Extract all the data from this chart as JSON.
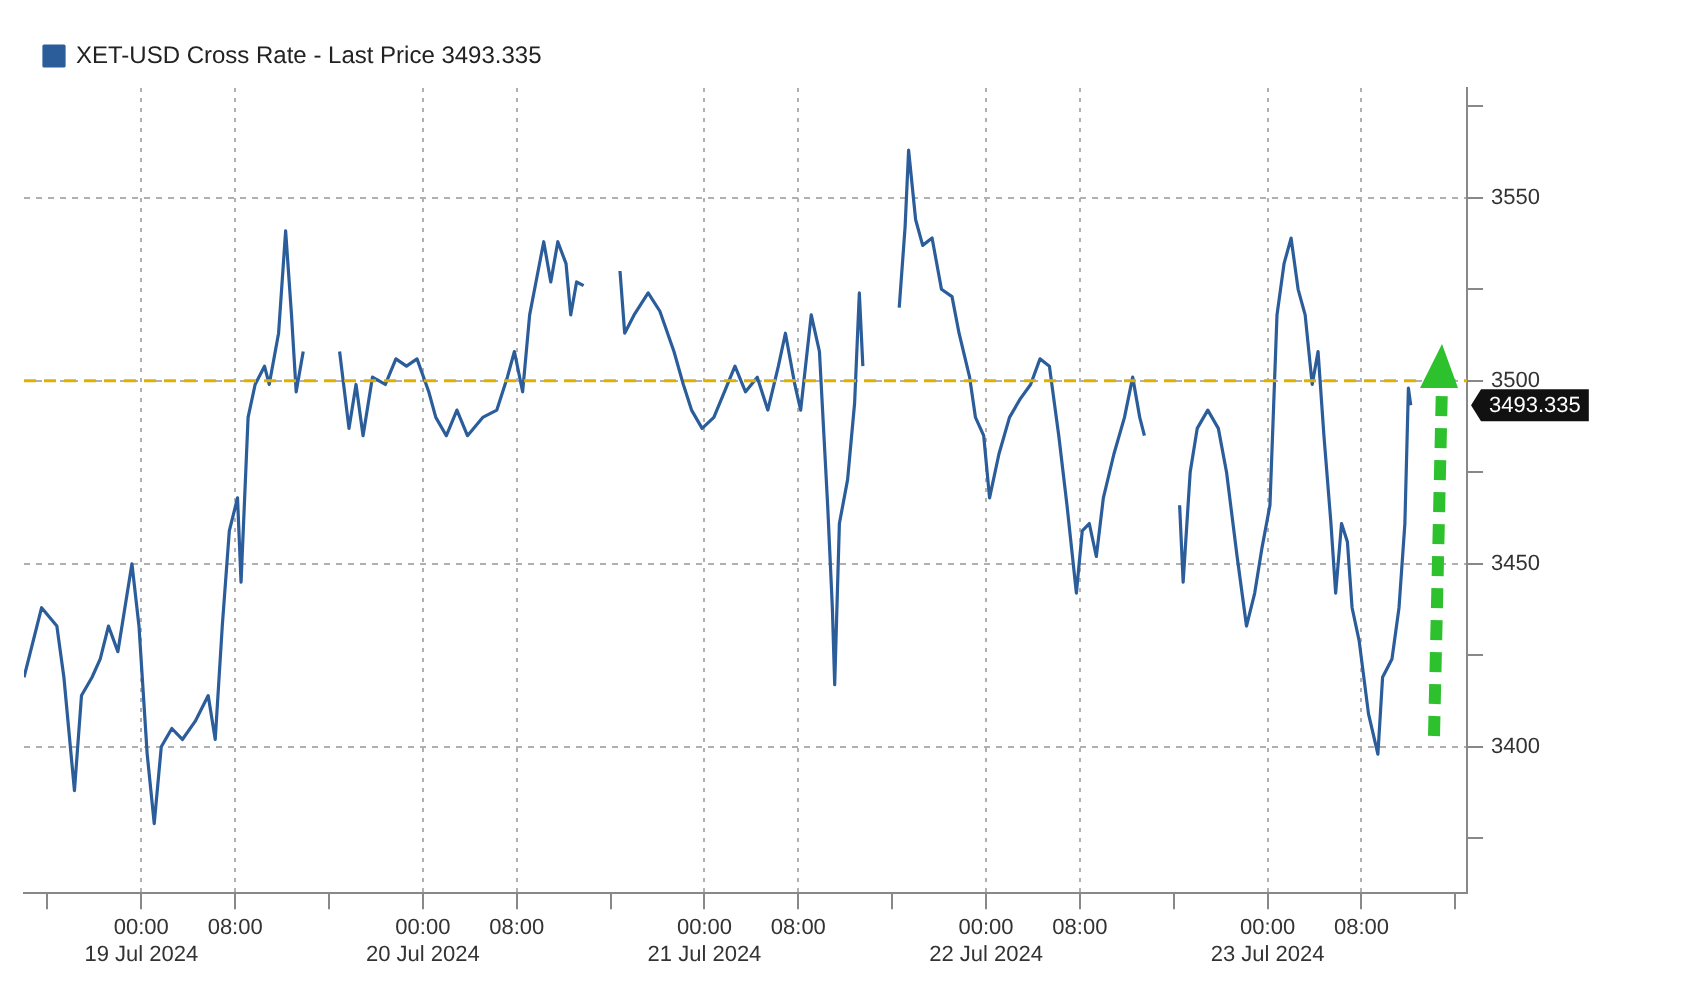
{
  "chart_data": {
    "type": "line",
    "series": [
      {
        "name": "XET-USD Cross Rate - Last Price 3493.335",
        "color": "#2b5d9b",
        "x": [
          "2024-07-18T14:00",
          "2024-07-18T15:30",
          "2024-07-18T16:48",
          "2024-07-18T17:24",
          "2024-07-18T18:18",
          "2024-07-18T18:54",
          "2024-07-18T19:48",
          "2024-07-18T20:30",
          "2024-07-18T21:12",
          "2024-07-18T22:00",
          "2024-07-18T22:36",
          "2024-07-18T23:12",
          "2024-07-18T23:48",
          "2024-07-19T00:30",
          "2024-07-19T01:06",
          "2024-07-19T01:42",
          "2024-07-19T02:36",
          "2024-07-19T03:30",
          "2024-07-19T04:36",
          "2024-07-19T05:42",
          "2024-07-19T06:18",
          "2024-07-19T06:54",
          "2024-07-19T07:30",
          "2024-07-19T08:12",
          "2024-07-19T08:30",
          "2024-07-19T09:06",
          "2024-07-19T09:42",
          "2024-07-19T10:30",
          "2024-07-19T10:54",
          "2024-07-19T11:42",
          "2024-07-19T12:18",
          "2024-07-19T12:48",
          "2024-07-19T13:12",
          "2024-07-19T13:48",
          "2024-07-19T14:30",
          "2024-07-19T16:54",
          "2024-07-19T17:42",
          "2024-07-19T18:18",
          "2024-07-19T18:54",
          "2024-07-19T19:42",
          "2024-07-19T20:48",
          "2024-07-19T21:42",
          "2024-07-19T22:36",
          "2024-07-19T23:30",
          "2024-07-20T00:30",
          "2024-07-20T01:06",
          "2024-07-20T02:00",
          "2024-07-20T02:54",
          "2024-07-20T03:48",
          "2024-07-20T05:06",
          "2024-07-20T06:18",
          "2024-07-20T07:12",
          "2024-07-20T07:48",
          "2024-07-20T08:30",
          "2024-07-20T09:06",
          "2024-07-20T09:42",
          "2024-07-20T10:18",
          "2024-07-20T10:54",
          "2024-07-20T11:30",
          "2024-07-20T12:12",
          "2024-07-20T12:36",
          "2024-07-20T13:06",
          "2024-07-20T13:42",
          "2024-07-20T14:30",
          "2024-07-20T16:48",
          "2024-07-20T17:12",
          "2024-07-20T18:00",
          "2024-07-20T19:12",
          "2024-07-20T20:12",
          "2024-07-20T21:24",
          "2024-07-20T22:12",
          "2024-07-20T22:54",
          "2024-07-20T23:48",
          "2024-07-21T00:48",
          "2024-07-21T01:42",
          "2024-07-21T02:36",
          "2024-07-21T03:30",
          "2024-07-21T04:30",
          "2024-07-21T05:24",
          "2024-07-21T06:18",
          "2024-07-21T06:54",
          "2024-07-21T07:42",
          "2024-07-21T08:12",
          "2024-07-21T09:06",
          "2024-07-21T09:48",
          "2024-07-21T10:30",
          "2024-07-21T10:54",
          "2024-07-21T11:06",
          "2024-07-21T11:30",
          "2024-07-21T12:12",
          "2024-07-21T12:48",
          "2024-07-21T13:12",
          "2024-07-21T13:30",
          "2024-07-21T14:30",
          "2024-07-21T16:36",
          "2024-07-21T17:06",
          "2024-07-21T17:24",
          "2024-07-21T18:00",
          "2024-07-21T18:36",
          "2024-07-21T19:24",
          "2024-07-21T20:12",
          "2024-07-21T21:06",
          "2024-07-21T21:42",
          "2024-07-21T22:36",
          "2024-07-21T23:06",
          "2024-07-21T23:48",
          "2024-07-22T00:18",
          "2024-07-22T01:06",
          "2024-07-22T02:00",
          "2024-07-22T02:54",
          "2024-07-22T03:48",
          "2024-07-22T04:36",
          "2024-07-22T05:24",
          "2024-07-22T06:12",
          "2024-07-22T06:54",
          "2024-07-22T07:42",
          "2024-07-22T08:12",
          "2024-07-22T08:48",
          "2024-07-22T09:24",
          "2024-07-22T10:00",
          "2024-07-22T10:54",
          "2024-07-22T11:48",
          "2024-07-22T12:30",
          "2024-07-22T13:06",
          "2024-07-22T13:30",
          "2024-07-22T14:30",
          "2024-07-22T16:30",
          "2024-07-22T16:48",
          "2024-07-22T17:24",
          "2024-07-22T18:00",
          "2024-07-22T18:54",
          "2024-07-22T19:48",
          "2024-07-22T20:30",
          "2024-07-22T21:24",
          "2024-07-22T22:12",
          "2024-07-22T22:54",
          "2024-07-22T23:30",
          "2024-07-23T00:12",
          "2024-07-23T00:48",
          "2024-07-23T01:24",
          "2024-07-23T02:00",
          "2024-07-23T02:36",
          "2024-07-23T03:12",
          "2024-07-23T03:48",
          "2024-07-23T04:18",
          "2024-07-23T04:48",
          "2024-07-23T05:24",
          "2024-07-23T05:48",
          "2024-07-23T06:18",
          "2024-07-23T06:48",
          "2024-07-23T07:12",
          "2024-07-23T07:48",
          "2024-07-23T08:36",
          "2024-07-23T09:24",
          "2024-07-23T09:48",
          "2024-07-23T10:36",
          "2024-07-23T11:12",
          "2024-07-23T11:42",
          "2024-07-23T12:00",
          "2024-07-23T12:12"
        ],
        "values": [
          3419,
          3438,
          3433,
          3419,
          3388,
          3414,
          3419,
          3424,
          3433,
          3426,
          3438,
          3450,
          3433,
          3398,
          3379,
          3400,
          3405,
          3402,
          3407,
          3414,
          3402,
          3433,
          3459,
          3468,
          3445,
          3490,
          3499,
          3504,
          3499,
          3513,
          3541,
          3518,
          3497,
          3508,
          null,
          3508,
          3487,
          3499,
          3485,
          3501,
          3499,
          3506,
          3504,
          3506,
          3497,
          3490,
          3485,
          3492,
          3485,
          3490,
          3492,
          3501,
          3508,
          3497,
          3518,
          3528,
          3538,
          3527,
          3538,
          3532,
          3518,
          3527,
          3526,
          null,
          3530,
          3513,
          3518,
          3524,
          3519,
          3508,
          3499,
          3492,
          3487,
          3490,
          3497,
          3504,
          3497,
          3501,
          3492,
          3504,
          3513,
          3499,
          3492,
          3518,
          3508,
          3466,
          3438,
          3417,
          3461,
          3473,
          3494,
          3524,
          3504,
          null,
          3520,
          3542,
          3563,
          3544,
          3537,
          3539,
          3525,
          3523,
          3513,
          3501,
          3490,
          3485,
          3468,
          3480,
          3490,
          3495,
          3499,
          3506,
          3504,
          3485,
          3466,
          3442,
          3459,
          3461,
          3452,
          3468,
          3480,
          3490,
          3501,
          3490,
          3485,
          null,
          3466,
          3445,
          3475,
          3487,
          3492,
          3487,
          3475,
          3452,
          3433,
          3442,
          3454,
          3466,
          3518,
          3532,
          3539,
          3525,
          3518,
          3499,
          3508,
          3485,
          3461,
          3442,
          3461,
          3456,
          3438,
          3429,
          3409,
          3398,
          3419,
          3424,
          3438,
          3461,
          3498,
          3493.335
        ]
      }
    ],
    "xlim": [
      "2024-07-18T14:00",
      "2024-07-23T17:00"
    ],
    "xticks": [
      {
        "value": "2024-07-18T16:00",
        "label": null
      },
      {
        "value": "2024-07-19T00:00",
        "label": "00:00\n19 Jul 2024"
      },
      {
        "value": "2024-07-19T08:00",
        "label": "08:00"
      },
      {
        "value": "2024-07-19T16:00",
        "label": null
      },
      {
        "value": "2024-07-20T00:00",
        "label": "00:00\n20 Jul 2024"
      },
      {
        "value": "2024-07-20T08:00",
        "label": "08:00"
      },
      {
        "value": "2024-07-20T16:00",
        "label": null
      },
      {
        "value": "2024-07-21T00:00",
        "label": "00:00\n21 Jul 2024"
      },
      {
        "value": "2024-07-21T08:00",
        "label": "08:00"
      },
      {
        "value": "2024-07-21T16:00",
        "label": null
      },
      {
        "value": "2024-07-22T00:00",
        "label": "00:00\n22 Jul 2024"
      },
      {
        "value": "2024-07-22T08:00",
        "label": "08:00"
      },
      {
        "value": "2024-07-22T16:00",
        "label": null
      },
      {
        "value": "2024-07-23T00:00",
        "label": "00:00\n23 Jul 2024"
      },
      {
        "value": "2024-07-23T08:00",
        "label": "08:00"
      },
      {
        "value": "2024-07-23T16:00",
        "label": null
      }
    ],
    "ylim": [
      3360,
      3580
    ],
    "yticks": [
      {
        "value": 3375,
        "label": null
      },
      3400,
      {
        "value": 3425,
        "label": null
      },
      3450,
      {
        "value": 3475,
        "label": null
      },
      3500,
      {
        "value": 3525,
        "label": null
      },
      3550,
      {
        "value": 3575,
        "label": null
      }
    ],
    "ref_lines": [
      {
        "axis": "y",
        "value": 3500,
        "color": "#e0b000",
        "line_style": "dashed"
      }
    ],
    "annotations": [
      "3493.335"
    ],
    "grid": true,
    "legend": "top left",
    "marker": "none",
    "line_style": "solid"
  }
}
